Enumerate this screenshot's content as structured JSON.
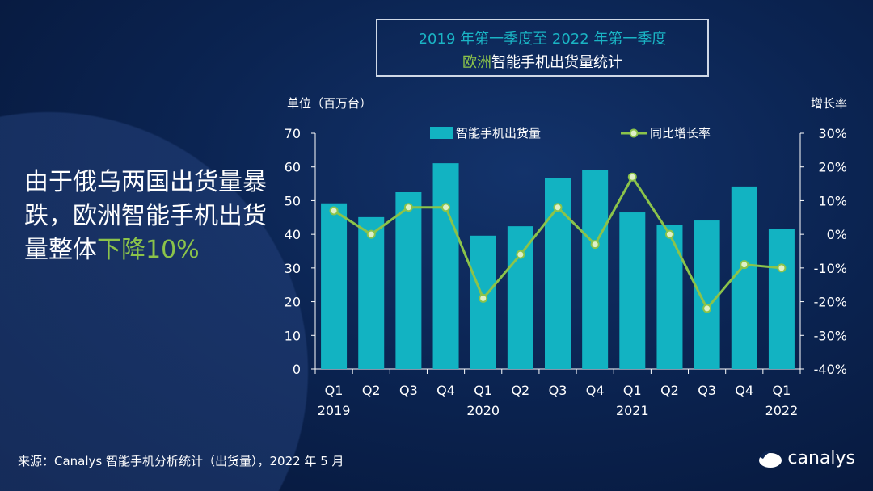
{
  "title": {
    "line1": "2019 年第一季度至 2022 年第一季度",
    "line2_highlight": "欧洲",
    "line2_rest": "智能手机出货量统计"
  },
  "headline": {
    "text": "由于俄乌两国出货量暴跌，欧洲智能手机出货量整体",
    "highlight": "下降10%"
  },
  "source": "来源：Canalys 智能手机分析统计（出货量），2022 年 5 月",
  "logo": "canalys",
  "colors": {
    "bar": "#12b3c2",
    "line": "#8bc34a",
    "accent_title": "#1ab4c4"
  },
  "chart_data": {
    "type": "bar+line",
    "ylabel": "单位（百万台）",
    "y2label": "增长率",
    "ylim": [
      0,
      70
    ],
    "y2lim": [
      -40,
      30
    ],
    "yticks": [
      "0",
      "10",
      "20",
      "30",
      "40",
      "50",
      "60",
      "70"
    ],
    "y2ticks": [
      "-40%",
      "-30%",
      "-20%",
      "-10%",
      "0%",
      "10%",
      "20%",
      "30%"
    ],
    "categories": [
      "Q1",
      "Q2",
      "Q3",
      "Q4",
      "Q1",
      "Q2",
      "Q3",
      "Q4",
      "Q1",
      "Q2",
      "Q3",
      "Q4",
      "Q1"
    ],
    "years": [
      "2019",
      "",
      "",
      "",
      "2020",
      "",
      "",
      "",
      "2021",
      "",
      "",
      "",
      "2022"
    ],
    "legend": {
      "placement": "top",
      "bar": "智能手机出货量",
      "line": "同比增长率"
    },
    "series": [
      {
        "name": "智能手机出货量",
        "type": "bar",
        "values": [
          49.2,
          45.1,
          52.5,
          61.1,
          39.6,
          42.4,
          56.6,
          59.2,
          46.5,
          42.7,
          44.1,
          54.2,
          41.5
        ]
      },
      {
        "name": "同比增长率",
        "type": "line",
        "axis": "right",
        "values": [
          7,
          0,
          8,
          8,
          -19,
          -6,
          8,
          -3,
          17,
          0,
          -22,
          -9,
          -10
        ]
      }
    ]
  }
}
